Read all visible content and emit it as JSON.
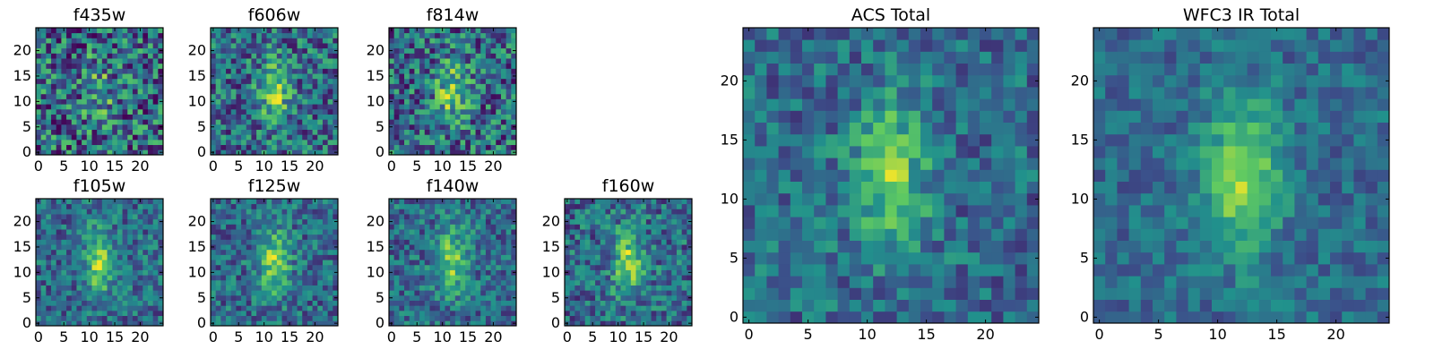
{
  "chart_data": [
    {
      "type": "heatmap",
      "title": "f435w",
      "grid_size": [
        25,
        25
      ],
      "colormap": "viridis",
      "x_ticks": [
        0,
        5,
        10,
        15,
        20
      ],
      "y_ticks": [
        0,
        5,
        10,
        15,
        20
      ],
      "noise": 0.75,
      "source_strength": 0.45
    },
    {
      "type": "heatmap",
      "title": "f606w",
      "grid_size": [
        25,
        25
      ],
      "colormap": "viridis",
      "x_ticks": [
        0,
        5,
        10,
        15,
        20
      ],
      "y_ticks": [
        0,
        5,
        10,
        15,
        20
      ],
      "noise": 0.6,
      "source_strength": 0.75
    },
    {
      "type": "heatmap",
      "title": "f814w",
      "grid_size": [
        25,
        25
      ],
      "colormap": "viridis",
      "x_ticks": [
        0,
        5,
        10,
        15,
        20
      ],
      "y_ticks": [
        0,
        5,
        10,
        15,
        20
      ],
      "noise": 0.65,
      "source_strength": 0.75
    },
    {
      "type": "heatmap",
      "title": "f105w",
      "grid_size": [
        25,
        25
      ],
      "colormap": "viridis",
      "x_ticks": [
        0,
        5,
        10,
        15,
        20
      ],
      "y_ticks": [
        0,
        5,
        10,
        15,
        20
      ],
      "noise": 0.45,
      "source_strength": 0.8
    },
    {
      "type": "heatmap",
      "title": "f125w",
      "grid_size": [
        25,
        25
      ],
      "colormap": "viridis",
      "x_ticks": [
        0,
        5,
        10,
        15,
        20
      ],
      "y_ticks": [
        0,
        5,
        10,
        15,
        20
      ],
      "noise": 0.45,
      "source_strength": 0.8
    },
    {
      "type": "heatmap",
      "title": "f140w",
      "grid_size": [
        25,
        25
      ],
      "colormap": "viridis",
      "x_ticks": [
        0,
        5,
        10,
        15,
        20
      ],
      "y_ticks": [
        0,
        5,
        10,
        15,
        20
      ],
      "noise": 0.45,
      "source_strength": 0.8
    },
    {
      "type": "heatmap",
      "title": "f160w",
      "grid_size": [
        25,
        25
      ],
      "colormap": "viridis",
      "x_ticks": [
        0,
        5,
        10,
        15,
        20
      ],
      "y_ticks": [
        0,
        5,
        10,
        15,
        20
      ],
      "noise": 0.5,
      "source_strength": 0.85
    },
    {
      "type": "heatmap",
      "title": "ACS Total",
      "grid_size": [
        25,
        25
      ],
      "colormap": "viridis",
      "x_ticks": [
        0,
        5,
        10,
        15,
        20
      ],
      "y_ticks": [
        0,
        5,
        10,
        15,
        20
      ],
      "noise": 0.4,
      "source_strength": 0.8
    },
    {
      "type": "heatmap",
      "title": "WFC3 IR Total",
      "grid_size": [
        25,
        25
      ],
      "colormap": "viridis",
      "x_ticks": [
        0,
        5,
        10,
        15,
        20
      ],
      "y_ticks": [
        0,
        5,
        10,
        15,
        20
      ],
      "noise": 0.3,
      "source_strength": 0.9
    }
  ],
  "colors": {
    "viridis_stops": [
      "#440154",
      "#3b528b",
      "#21918c",
      "#5ec962",
      "#fde725"
    ],
    "axes_edge": "#000000",
    "background": "#ffffff"
  }
}
